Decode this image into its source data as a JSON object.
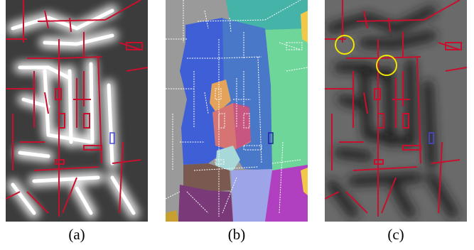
{
  "figure": {
    "panels": [
      {
        "id": "a",
        "label": "(a)",
        "kind": "distance-map-light"
      },
      {
        "id": "b",
        "label": "(b)",
        "kind": "segmentation"
      },
      {
        "id": "c",
        "label": "(c)",
        "kind": "distance-map-dark"
      }
    ],
    "colors": {
      "wall": "#c8102e",
      "highlight_circle": "#f2e600",
      "window": "#4a4ad8",
      "seg_blue": "#3f5fd6",
      "seg_mid_blue": "#4a78c8",
      "seg_green": "#6fd69a",
      "seg_teal": "#46b3a8",
      "seg_orange": "#e3a35a",
      "seg_pink": "#d67474",
      "seg_magenta": "#c04a86",
      "seg_cyan": "#a8d8d8",
      "seg_brown": "#7a5a50",
      "seg_purple": "#7a3a7a",
      "seg_lavender": "#9ea4e8",
      "seg_violet": "#b040c0",
      "seg_gray": "#9a9a9a",
      "seg_yellow": "#f2c84a"
    }
  }
}
